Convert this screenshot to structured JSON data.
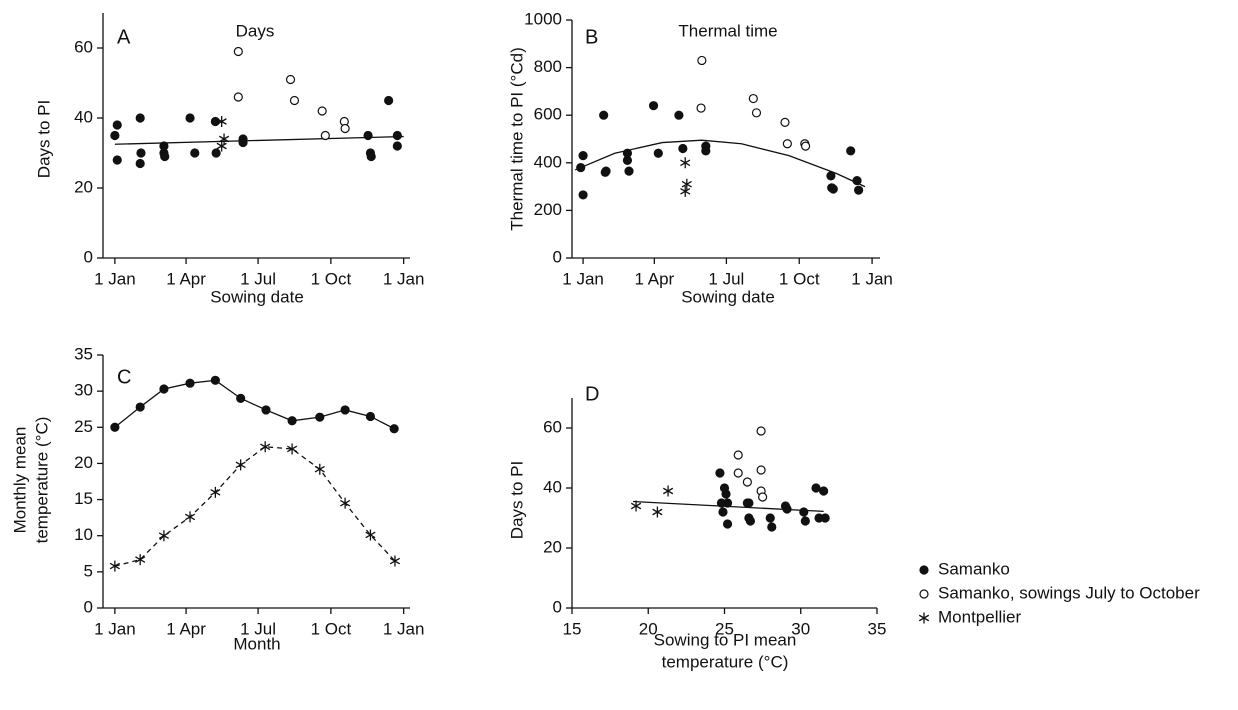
{
  "chart_data": [
    {
      "type": "scatter",
      "panel": "A",
      "title": "Days",
      "xlabel": "Sowing date",
      "ylabel": "Days to PI",
      "xlim": [
        -15,
        373
      ],
      "ylim": [
        0,
        70
      ],
      "xticks": [
        {
          "value": 0,
          "label": "1 Jan"
        },
        {
          "value": 90,
          "label": "1 Apr"
        },
        {
          "value": 181,
          "label": "1 Jul"
        },
        {
          "value": 273,
          "label": "1 Oct"
        },
        {
          "value": 365,
          "label": "1 Jan"
        }
      ],
      "yticks": [
        0,
        20,
        40,
        60
      ],
      "series": [
        {
          "marker": "filled",
          "x": [
            0,
            3,
            3,
            32,
            33,
            32,
            62,
            62,
            63,
            95,
            101,
            127,
            128,
            162,
            162,
            320,
            323,
            324,
            346,
            357,
            357
          ],
          "values": [
            35,
            38,
            28,
            40,
            30,
            27,
            30,
            32,
            29,
            40,
            30,
            39,
            30,
            34,
            33,
            35,
            30,
            29,
            45,
            35,
            32
          ]
        },
        {
          "marker": "open",
          "x": [
            156,
            156,
            222,
            227,
            262,
            266,
            290,
            291
          ],
          "values": [
            59,
            46,
            51,
            45,
            42,
            35,
            39,
            37
          ]
        },
        {
          "marker": "star",
          "x": [
            135,
            138,
            135
          ],
          "values": [
            39,
            34,
            32
          ]
        }
      ],
      "trend": {
        "x": [
          0,
          365
        ],
        "values": [
          32.5,
          34.7
        ]
      }
    },
    {
      "type": "scatter",
      "panel": "B",
      "title": "Thermal time",
      "xlabel": "Sowing date",
      "ylabel": "Thermal time to PI (°Cd)",
      "xlim": [
        -14,
        375
      ],
      "ylim": [
        0,
        1000
      ],
      "xticks": [
        {
          "value": 0,
          "label": "1 Jan"
        },
        {
          "value": 90,
          "label": "1 Apr"
        },
        {
          "value": 181,
          "label": "1 Jul"
        },
        {
          "value": 273,
          "label": "1 Oct"
        },
        {
          "value": 365,
          "label": "1 Jan"
        }
      ],
      "yticks": [
        0,
        200,
        400,
        600,
        800,
        1000
      ],
      "series": [
        {
          "marker": "filled",
          "x": [
            -3,
            0,
            0,
            26,
            28,
            29,
            56,
            56,
            58,
            89,
            95,
            121,
            126,
            155,
            155,
            313,
            314,
            316,
            338,
            346,
            348
          ],
          "values": [
            380,
            430,
            265,
            600,
            360,
            365,
            440,
            410,
            365,
            640,
            440,
            600,
            460,
            470,
            450,
            345,
            295,
            290,
            450,
            325,
            285
          ]
        },
        {
          "marker": "open",
          "x": [
            150,
            149,
            215,
            219,
            255,
            258,
            280,
            281
          ],
          "values": [
            830,
            630,
            670,
            610,
            570,
            480,
            480,
            470
          ]
        },
        {
          "marker": "star",
          "x": [
            129,
            131,
            129
          ],
          "values": [
            400,
            310,
            280
          ]
        }
      ],
      "trend": {
        "x": [
          -10,
          40,
          100,
          150,
          200,
          260,
          320,
          356
        ],
        "values": [
          370,
          440,
          485,
          495,
          480,
          430,
          355,
          300
        ]
      }
    },
    {
      "type": "line",
      "panel": "C",
      "xlabel": "Month",
      "ylabel": [
        "Monthly mean",
        "temperature (°C)"
      ],
      "xlim": [
        -15,
        373
      ],
      "ylim": [
        0,
        35
      ],
      "xticks": [
        {
          "value": 0,
          "label": "1 Jan"
        },
        {
          "value": 90,
          "label": "1 Apr"
        },
        {
          "value": 181,
          "label": "1 Jul"
        },
        {
          "value": 273,
          "label": "1 Oct"
        },
        {
          "value": 365,
          "label": "1 Jan"
        }
      ],
      "yticks": [
        0,
        5,
        10,
        15,
        20,
        25,
        30,
        35
      ],
      "series": [
        {
          "marker": "filled",
          "dash": false,
          "x": [
            0,
            32,
            62,
            95,
            127,
            159,
            191,
            224,
            259,
            291,
            323,
            353
          ],
          "values": [
            25,
            27.8,
            30.3,
            31.1,
            31.5,
            29,
            27.4,
            25.9,
            26.4,
            27.4,
            26.5,
            24.8
          ]
        },
        {
          "marker": "star",
          "dash": true,
          "x": [
            0,
            32,
            62,
            95,
            127,
            159,
            190,
            224,
            259,
            291,
            323,
            354
          ],
          "values": [
            5.8,
            6.7,
            10,
            12.6,
            16,
            19.8,
            22.3,
            22,
            19.2,
            14.5,
            10.1,
            6.5
          ]
        }
      ]
    },
    {
      "type": "scatter",
      "panel": "D",
      "xlabel": [
        "Sowing to PI mean",
        "temperature (°C)"
      ],
      "ylabel": "Days to PI",
      "xlim": [
        15,
        35
      ],
      "ylim": [
        0,
        70
      ],
      "xticks": [
        15,
        20,
        25,
        30,
        35
      ],
      "yticks": [
        0,
        20,
        40,
        60
      ],
      "series": [
        {
          "name": "Samanko",
          "marker": "filled",
          "x": [
            24.7,
            24.8,
            24.9,
            25.0,
            25.1,
            25.2,
            25.2,
            26.5,
            26.6,
            26.6,
            26.7,
            28.0,
            28.1,
            29.0,
            29.1,
            30.2,
            30.3,
            31.0,
            31.2,
            31.5,
            31.6
          ],
          "values": [
            45,
            35,
            32,
            40,
            38,
            35,
            28,
            35,
            35,
            30,
            29,
            30,
            27,
            34,
            33,
            32,
            29,
            40,
            30,
            39,
            30
          ]
        },
        {
          "name": "Samanko, sowings July to October",
          "marker": "open",
          "x": [
            25.9,
            25.9,
            26.5,
            27.4,
            27.4,
            27.4,
            27.5
          ],
          "values": [
            51,
            45,
            42,
            59,
            46,
            39,
            37
          ]
        },
        {
          "name": "Montpellier",
          "marker": "star",
          "x": [
            19.2,
            20.6,
            21.3
          ],
          "values": [
            34,
            32,
            39
          ]
        }
      ],
      "trend": {
        "x": [
          19,
          31.5
        ],
        "values": [
          35.5,
          32.2
        ]
      }
    }
  ]
}
